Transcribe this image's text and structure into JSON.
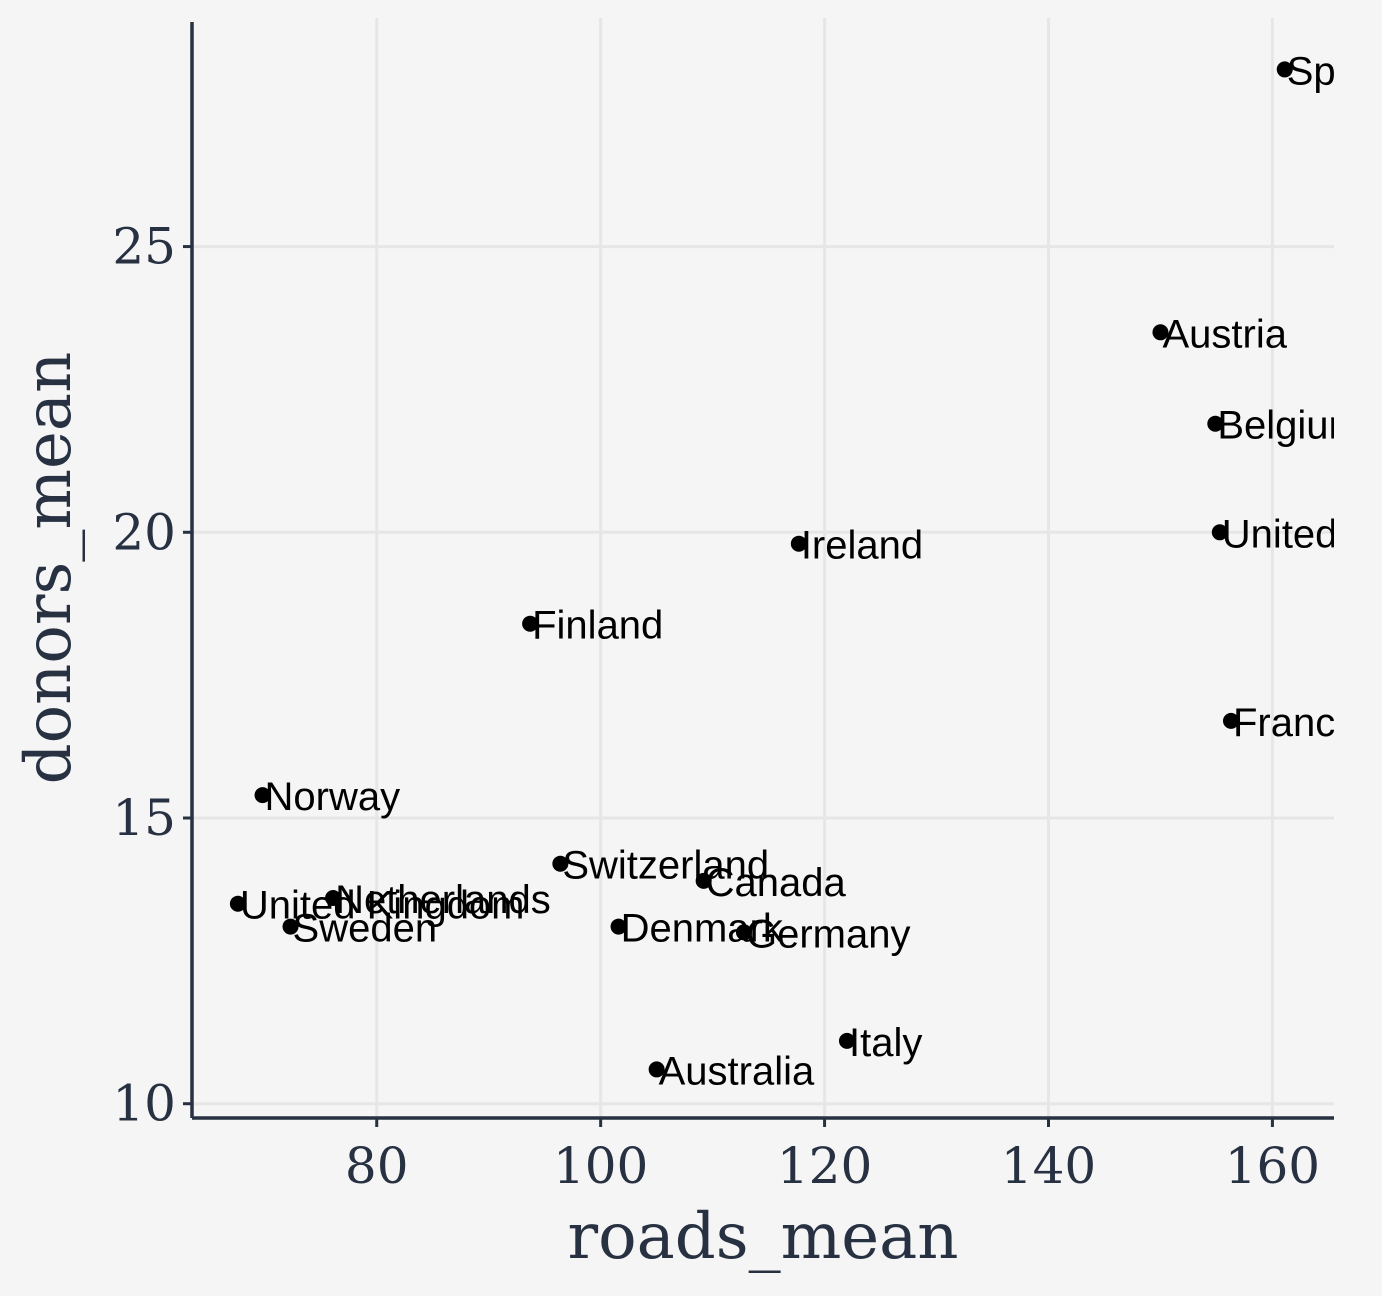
{
  "chart_data": {
    "type": "scatter",
    "xlabel": "roads_mean",
    "ylabel": "donors_mean",
    "xlim": [
      63.5,
      165.5
    ],
    "ylim": [
      9.75,
      29.0
    ],
    "xticks": [
      80,
      100,
      120,
      140,
      160
    ],
    "yticks": [
      10,
      15,
      20,
      25
    ],
    "grid": true,
    "points": [
      {
        "label": "Spain",
        "x": 161.1,
        "y": 28.1
      },
      {
        "label": "Austria",
        "x": 150.0,
        "y": 23.5
      },
      {
        "label": "Belgium",
        "x": 154.9,
        "y": 21.9
      },
      {
        "label": "United States",
        "x": 155.3,
        "y": 20.0
      },
      {
        "label": "Ireland",
        "x": 117.7,
        "y": 19.8
      },
      {
        "label": "Finland",
        "x": 93.7,
        "y": 18.4
      },
      {
        "label": "France",
        "x": 156.3,
        "y": 16.7
      },
      {
        "label": "Norway",
        "x": 69.8,
        "y": 15.4
      },
      {
        "label": "Switzerland",
        "x": 96.4,
        "y": 14.2
      },
      {
        "label": "Canada",
        "x": 109.2,
        "y": 13.9
      },
      {
        "label": "Netherlands",
        "x": 76.1,
        "y": 13.6
      },
      {
        "label": "United Kingdom",
        "x": 67.6,
        "y": 13.5
      },
      {
        "label": "Sweden",
        "x": 72.3,
        "y": 13.1
      },
      {
        "label": "Denmark",
        "x": 101.6,
        "y": 13.1
      },
      {
        "label": "Germany",
        "x": 112.8,
        "y": 13.0
      },
      {
        "label": "Italy",
        "x": 122.0,
        "y": 11.1
      },
      {
        "label": "Australia",
        "x": 105.0,
        "y": 10.6
      }
    ]
  }
}
